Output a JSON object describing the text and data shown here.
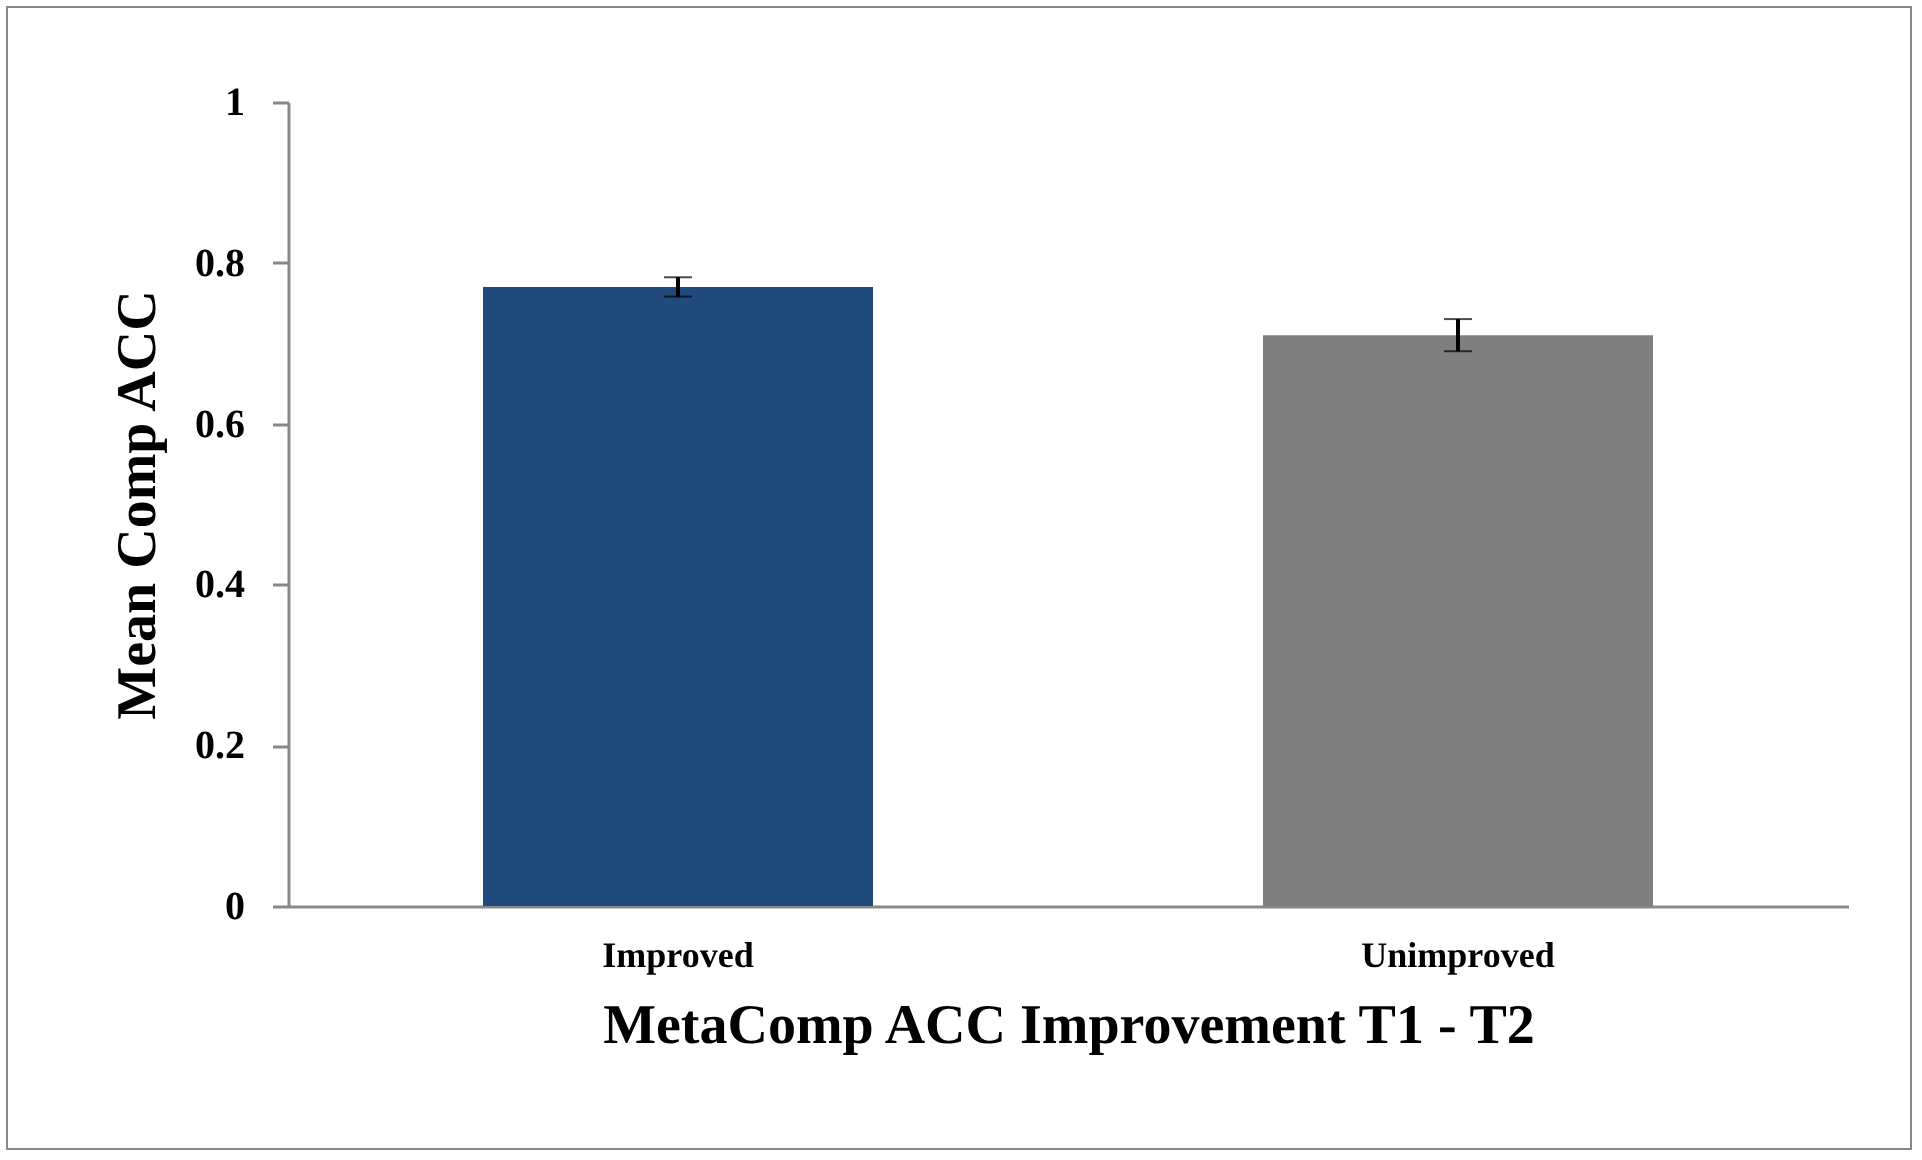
{
  "chart_data": {
    "type": "bar",
    "xlabel": "MetaComp ACC Improvement T1 - T2",
    "ylabel": "Mean Comp ACC",
    "categories": [
      "Improved",
      "Unimproved"
    ],
    "values": [
      0.77,
      0.71
    ],
    "colors": [
      "#204a7c",
      "#7f7f7f"
    ],
    "errors": [
      0.012,
      0.02
    ],
    "ylim": [
      0,
      1
    ],
    "yticks": [
      0,
      0.2,
      0.4,
      0.6,
      0.8,
      1
    ],
    "grid": false
  }
}
